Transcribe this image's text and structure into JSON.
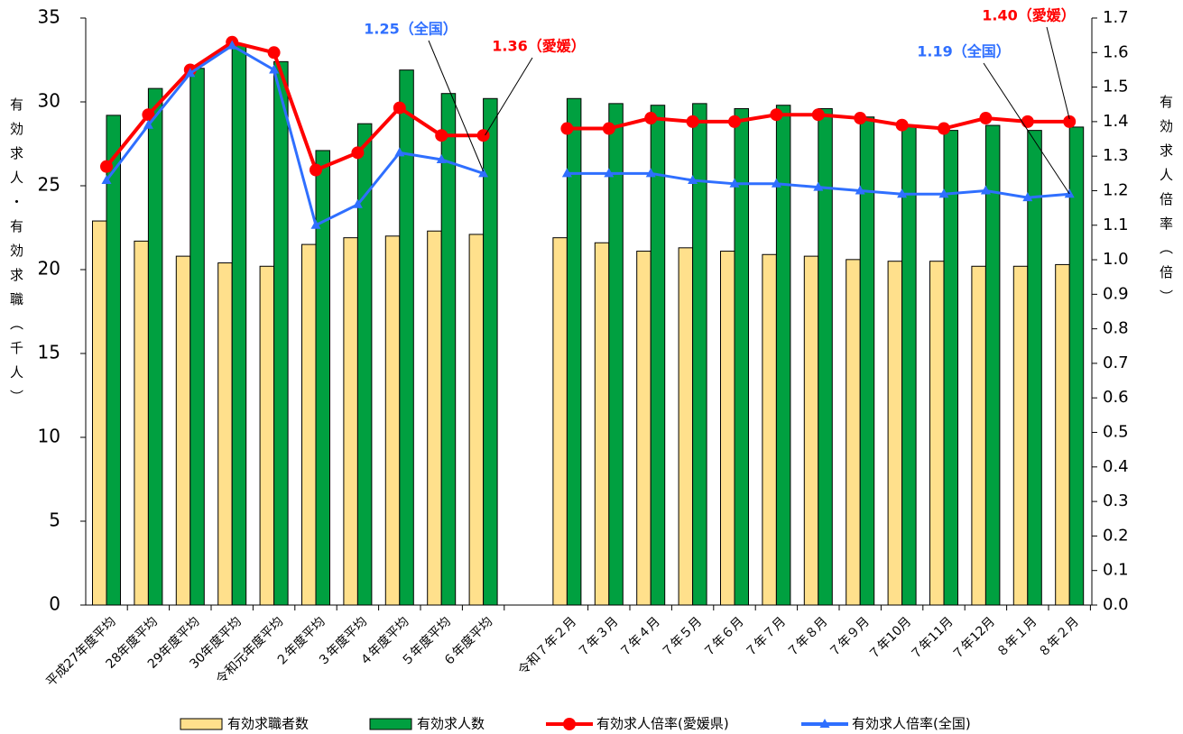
{
  "chart_data": {
    "type": "bar-line",
    "y_label": "有効求人・有効求職（千人）",
    "y2_label": "有効求人倍率（倍）",
    "categories": [
      "平成27年度平均",
      "28年度平均",
      "29年度平均",
      "30年度平均",
      "令和元年度平均",
      "２年度平均",
      "３年度平均",
      "４年度平均",
      "５年度平均",
      "６年度平均",
      null,
      "令和７年２月",
      "７年３月",
      "７年４月",
      "７年５月",
      "７年６月",
      "７年７月",
      "７年８月",
      "７年９月",
      "７年10月",
      "７年11月",
      "７年12月",
      "８年１月",
      "８年２月"
    ],
    "series": [
      {
        "name": "有効求職者数",
        "kind": "bar",
        "color": "#ffe08c",
        "values": [
          22.9,
          21.7,
          20.8,
          20.4,
          20.2,
          21.5,
          21.9,
          22.0,
          22.3,
          22.1,
          null,
          21.9,
          21.6,
          21.1,
          21.3,
          21.1,
          20.9,
          20.8,
          20.6,
          20.5,
          20.5,
          20.2,
          20.2,
          20.3
        ]
      },
      {
        "name": "有効求人数",
        "kind": "bar",
        "color": "#00a040",
        "values": [
          29.2,
          30.8,
          32.0,
          33.4,
          32.4,
          27.1,
          28.7,
          31.9,
          30.5,
          30.2,
          null,
          30.2,
          29.9,
          29.8,
          29.9,
          29.6,
          29.8,
          29.6,
          29.1,
          28.6,
          28.3,
          28.6,
          28.3,
          28.5
        ]
      },
      {
        "name": "有効求人倍率(愛媛県)",
        "kind": "line",
        "marker": "circle",
        "axis": "y2",
        "color": "#ff0000",
        "values": [
          1.27,
          1.42,
          1.55,
          1.63,
          1.6,
          1.26,
          1.31,
          1.44,
          1.36,
          1.36,
          null,
          1.38,
          1.38,
          1.41,
          1.4,
          1.4,
          1.42,
          1.42,
          1.41,
          1.39,
          1.38,
          1.41,
          1.4,
          1.4
        ]
      },
      {
        "name": "有効求人倍率(全国)",
        "kind": "line",
        "marker": "triangle",
        "axis": "y2",
        "color": "#2f6fff",
        "values": [
          1.23,
          1.39,
          1.54,
          1.62,
          1.55,
          1.1,
          1.16,
          1.31,
          1.29,
          1.25,
          null,
          1.25,
          1.25,
          1.25,
          1.23,
          1.22,
          1.22,
          1.21,
          1.2,
          1.19,
          1.19,
          1.2,
          1.18,
          1.19
        ]
      }
    ],
    "ylim": [
      0,
      35
    ],
    "yticks": [
      0,
      5,
      10,
      15,
      20,
      25,
      30,
      35
    ],
    "y2lim": [
      0,
      1.7
    ],
    "y2ticks": [
      {
        "value": 0,
        "label": "0.0"
      },
      0.1,
      0.2,
      0.3,
      0.4,
      0.5,
      0.6,
      0.7,
      0.8,
      0.9,
      {
        "value": 1,
        "label": "1.0"
      },
      1.1,
      1.2,
      1.3,
      1.4,
      1.5,
      1.6,
      1.7
    ],
    "annotations": [
      {
        "text": "1.25（全国）",
        "color": "#2f6fff"
      },
      {
        "text": "1.36（愛媛）",
        "color": "#ff0000"
      },
      {
        "text": "1.19（全国）",
        "color": "#2f6fff"
      },
      {
        "text": "1.40（愛媛）",
        "color": "#ff0000"
      }
    ],
    "legend": "bottom"
  }
}
